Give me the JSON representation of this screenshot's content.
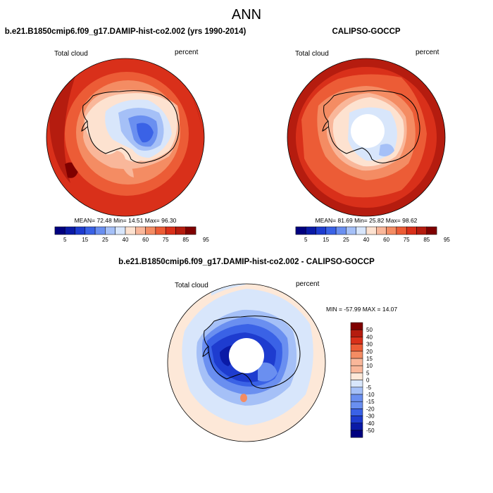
{
  "figure_title": "ANN",
  "colors": {
    "abs_scale": [
      "#00007f",
      "#0a1aa6",
      "#1e3ccf",
      "#3a62e6",
      "#6a8ff0",
      "#a5c0f7",
      "#d8e6fb",
      "#fde2d0",
      "#f9b79a",
      "#f48c63",
      "#ec5c36",
      "#d9301a",
      "#b51c0f",
      "#7f0000"
    ],
    "diff_scale": [
      "#00007f",
      "#0a1aa6",
      "#1e3ccf",
      "#3a62e6",
      "#6a8ff0",
      "#a5c0f7",
      "#d8e6fb",
      "#fde8d8",
      "#f9b79a",
      "#f48c63",
      "#ec5c36",
      "#d9301a",
      "#b51c0f",
      "#7f0000"
    ],
    "land": "#ffffff",
    "coast": "#000000"
  },
  "chart_data": [
    {
      "type": "heatmap",
      "projection": "polar-stereographic-south",
      "title": "b.e21.B1850cmip6.f09_g17.DAMIP-hist-co2.002 (yrs 1990-2014)",
      "left_label": "Total cloud",
      "right_label": "percent",
      "stats": {
        "mean": "72.48",
        "min": "14.51",
        "max": "96.30"
      },
      "stats_text": "MEAN=  72.48  Min=  14.51  Max=  96.30",
      "colorbar_ticks": [
        "5",
        "15",
        "25",
        "40",
        "60",
        "75",
        "85",
        "95"
      ],
      "levels": [
        5,
        10,
        15,
        20,
        25,
        30,
        40,
        50,
        60,
        70,
        75,
        80,
        85,
        90,
        95
      ],
      "has_data_hole": false
    },
    {
      "type": "heatmap",
      "projection": "polar-stereographic-south",
      "title": "CALIPSO-GOCCP",
      "left_label": "Total cloud",
      "right_label": "percent",
      "stats": {
        "mean": "81.69",
        "min": "25.82",
        "max": "98.62"
      },
      "stats_text": "MEAN=  81.69  Min=  25.82  Max=  98.62",
      "colorbar_ticks": [
        "5",
        "15",
        "25",
        "40",
        "60",
        "75",
        "85",
        "95"
      ],
      "levels": [
        5,
        10,
        15,
        20,
        25,
        30,
        40,
        50,
        60,
        70,
        75,
        80,
        85,
        90,
        95
      ],
      "has_data_hole": true
    },
    {
      "type": "heatmap",
      "projection": "polar-stereographic-south",
      "title": "b.e21.B1850cmip6.f09_g17.DAMIP-hist-co2.002 - CALIPSO-GOCCP",
      "left_label": "Total cloud",
      "right_label": "percent",
      "stats": {
        "min": "-57.99",
        "max": "14.07"
      },
      "stats_text": "MIN = -57.99 MAX =  14.07",
      "colorbar_ticks": [
        "50",
        "40",
        "30",
        "20",
        "15",
        "10",
        "5",
        "0",
        "-5",
        "-10",
        "-15",
        "-20",
        "-30",
        "-40",
        "-50"
      ],
      "levels": [
        -50,
        -40,
        -30,
        -20,
        -15,
        -10,
        -5,
        0,
        5,
        10,
        15,
        20,
        30,
        40,
        50
      ],
      "has_data_hole": true
    }
  ]
}
